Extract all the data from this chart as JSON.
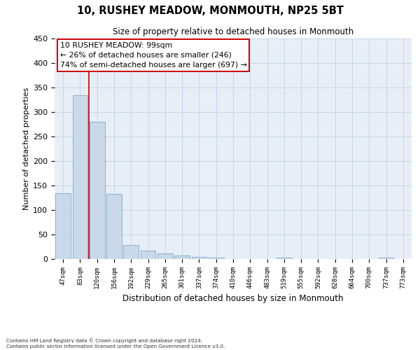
{
  "title": "10, RUSHEY MEADOW, MONMOUTH, NP25 5BT",
  "subtitle": "Size of property relative to detached houses in Monmouth",
  "xlabel": "Distribution of detached houses by size in Monmouth",
  "ylabel": "Number of detached properties",
  "bar_labels": [
    "47sqm",
    "83sqm",
    "120sqm",
    "156sqm",
    "192sqm",
    "229sqm",
    "265sqm",
    "301sqm",
    "337sqm",
    "374sqm",
    "410sqm",
    "446sqm",
    "483sqm",
    "519sqm",
    "555sqm",
    "592sqm",
    "628sqm",
    "664sqm",
    "700sqm",
    "737sqm",
    "773sqm"
  ],
  "bar_values": [
    135,
    335,
    280,
    133,
    28,
    17,
    12,
    7,
    5,
    3,
    0,
    0,
    0,
    3,
    0,
    0,
    0,
    0,
    0,
    3,
    0
  ],
  "bar_color": "#c9d9ea",
  "bar_edgecolor": "#7aaac8",
  "vline_color": "#cc0000",
  "vline_x": 1.5,
  "annotation_title": "10 RUSHEY MEADOW: 99sqm",
  "annotation_line1": "← 26% of detached houses are smaller (246)",
  "annotation_line2": "74% of semi-detached houses are larger (697) →",
  "annotation_box_facecolor": "#ffffff",
  "annotation_box_edgecolor": "#cc0000",
  "ylim": [
    0,
    450
  ],
  "yticks": [
    0,
    50,
    100,
    150,
    200,
    250,
    300,
    350,
    400,
    450
  ],
  "grid_color": "#c5d5e8",
  "background_color": "#e8eef6",
  "footer_line1": "Contains HM Land Registry data © Crown copyright and database right 2024.",
  "footer_line2": "Contains public sector information licensed under the Open Government Licence v3.0."
}
